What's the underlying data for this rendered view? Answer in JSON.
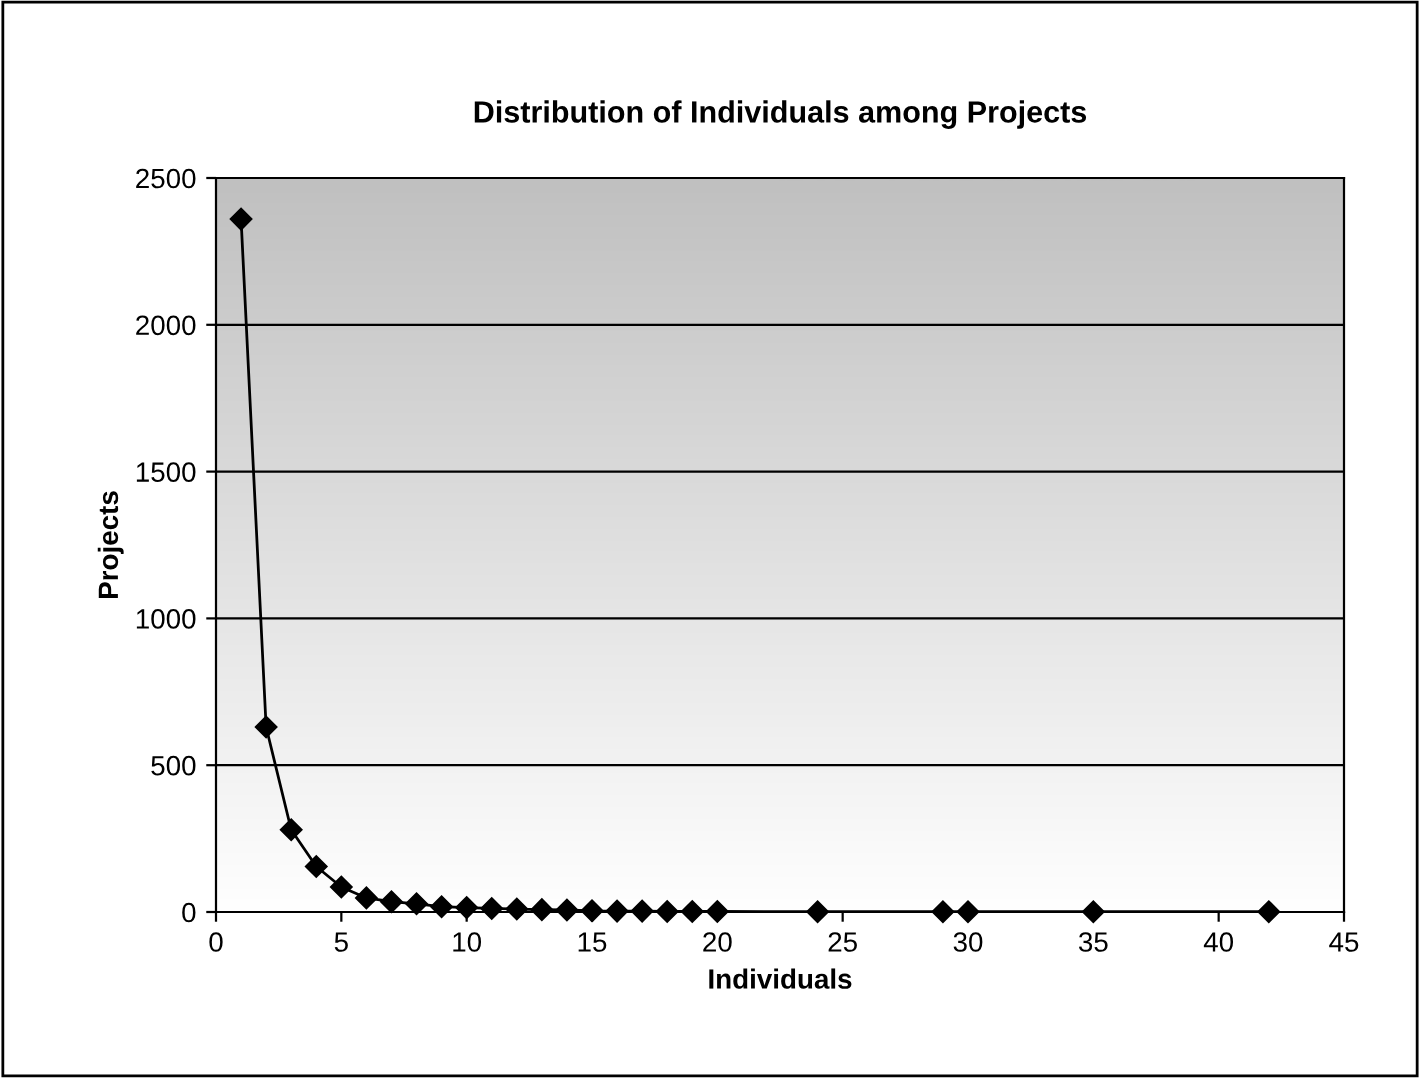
{
  "chart_data": {
    "type": "line",
    "title": "Distribution of Individuals among Projects",
    "xlabel": "Individuals",
    "ylabel": "Projects",
    "x": [
      1,
      2,
      3,
      4,
      5,
      6,
      7,
      8,
      9,
      10,
      11,
      12,
      13,
      14,
      15,
      16,
      17,
      18,
      19,
      20,
      24,
      29,
      30,
      35,
      42
    ],
    "series": [
      {
        "color": "#000000",
        "values": [
          2360,
          630,
          280,
          155,
          85,
          48,
          35,
          28,
          18,
          15,
          12,
          10,
          8,
          7,
          4,
          3,
          3,
          2,
          2,
          2,
          1,
          1,
          1,
          1,
          1
        ]
      }
    ],
    "xlim": [
      0,
      45
    ],
    "xticks": [
      0,
      5,
      10,
      15,
      20,
      25,
      30,
      35,
      40,
      45
    ],
    "ylim": [
      0,
      2500
    ],
    "yticks": [
      0,
      500,
      1000,
      1500,
      2000,
      2500
    ],
    "grid": "y",
    "marker": "diamond",
    "line_style": "solid",
    "legend": false
  }
}
